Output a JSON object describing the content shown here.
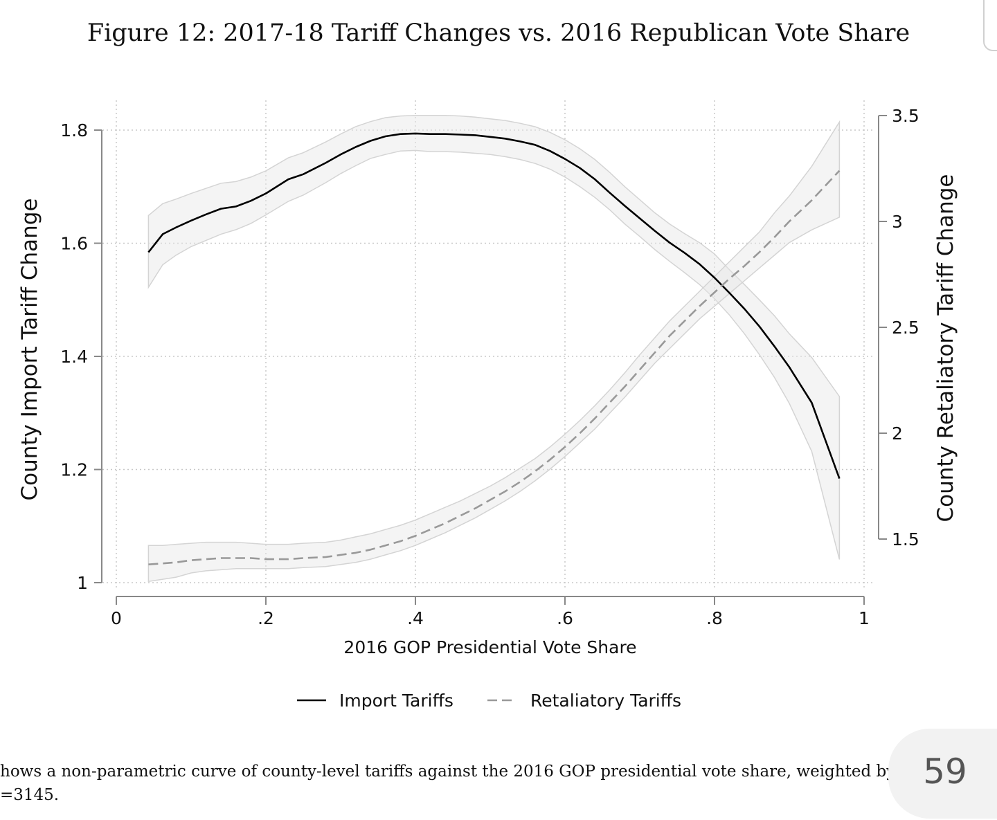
{
  "page": {
    "title": "Figure 12: 2017-18 Tariff Changes vs. 2016 Republican Vote Share",
    "caption_line1": "hows a non-parametric curve of county-level tariffs against the 2016 GOP presidential vote share, weighted by po",
    "caption_line2": "=3145.",
    "page_number": "59"
  },
  "chart_data": {
    "type": "line",
    "title": "",
    "xlabel": "2016 GOP Presidential Vote Share",
    "ylabel": "County Import Tariff Change",
    "ylabel_right": "County Retaliatory Tariff Change",
    "xlim": [
      0,
      1
    ],
    "ylim": [
      1,
      1.8
    ],
    "ylim_right": [
      1.5,
      3.5
    ],
    "x_ticks": [
      0,
      0.2,
      0.4,
      0.6,
      0.8,
      1
    ],
    "x_tick_labels": [
      "0",
      ".2",
      ".4",
      ".6",
      ".8",
      "1"
    ],
    "y_ticks": [
      1,
      1.2,
      1.4,
      1.6,
      1.8
    ],
    "y_tick_labels": [
      "1",
      "1.2",
      "1.4",
      "1.6",
      "1.8"
    ],
    "y_right_ticks": [
      1.5,
      2,
      2.5,
      3,
      3.5
    ],
    "y_right_tick_labels": [
      "1.5",
      "2",
      "2.5",
      "3",
      "3.5"
    ],
    "grid": true,
    "legend_position": "bottom",
    "x": [
      0.043,
      0.062,
      0.08,
      0.1,
      0.12,
      0.14,
      0.16,
      0.18,
      0.2,
      0.23,
      0.25,
      0.28,
      0.3,
      0.32,
      0.34,
      0.36,
      0.38,
      0.4,
      0.42,
      0.44,
      0.46,
      0.48,
      0.5,
      0.52,
      0.54,
      0.56,
      0.58,
      0.6,
      0.62,
      0.64,
      0.66,
      0.68,
      0.7,
      0.72,
      0.74,
      0.76,
      0.78,
      0.8,
      0.82,
      0.84,
      0.86,
      0.88,
      0.9,
      0.93,
      0.967
    ],
    "series": [
      {
        "name": "Import Tariffs",
        "axis": "left",
        "color": "#000000",
        "dash": "solid",
        "values": [
          1.584,
          1.616,
          1.628,
          1.64,
          1.651,
          1.661,
          1.665,
          1.675,
          1.688,
          1.713,
          1.722,
          1.742,
          1.757,
          1.77,
          1.781,
          1.789,
          1.793,
          1.794,
          1.793,
          1.793,
          1.792,
          1.791,
          1.788,
          1.785,
          1.78,
          1.774,
          1.763,
          1.749,
          1.733,
          1.713,
          1.689,
          1.666,
          1.644,
          1.622,
          1.601,
          1.583,
          1.563,
          1.539,
          1.512,
          1.484,
          1.453,
          1.418,
          1.381,
          1.318,
          1.184
        ],
        "ci_lower": [
          1.522,
          1.562,
          1.579,
          1.594,
          1.605,
          1.616,
          1.624,
          1.635,
          1.65,
          1.674,
          1.685,
          1.707,
          1.723,
          1.737,
          1.75,
          1.757,
          1.763,
          1.764,
          1.762,
          1.762,
          1.761,
          1.759,
          1.757,
          1.753,
          1.748,
          1.741,
          1.731,
          1.717,
          1.7,
          1.681,
          1.659,
          1.634,
          1.612,
          1.589,
          1.568,
          1.548,
          1.527,
          1.502,
          1.473,
          1.44,
          1.403,
          1.363,
          1.317,
          1.232,
          1.041
        ],
        "ci_upper": [
          1.649,
          1.67,
          1.678,
          1.688,
          1.697,
          1.706,
          1.709,
          1.717,
          1.728,
          1.751,
          1.76,
          1.779,
          1.793,
          1.806,
          1.815,
          1.822,
          1.825,
          1.826,
          1.826,
          1.826,
          1.825,
          1.823,
          1.82,
          1.817,
          1.812,
          1.806,
          1.796,
          1.783,
          1.767,
          1.748,
          1.725,
          1.7,
          1.677,
          1.654,
          1.634,
          1.617,
          1.601,
          1.581,
          1.553,
          1.527,
          1.5,
          1.472,
          1.44,
          1.398,
          1.329
        ]
      },
      {
        "name": "Retaliatory Tariffs",
        "axis": "right",
        "color": "#999999",
        "dash": "dashed",
        "values": [
          1.38,
          1.385,
          1.39,
          1.4,
          1.405,
          1.41,
          1.41,
          1.41,
          1.405,
          1.405,
          1.41,
          1.415,
          1.425,
          1.435,
          1.45,
          1.47,
          1.49,
          1.515,
          1.545,
          1.575,
          1.61,
          1.645,
          1.685,
          1.725,
          1.77,
          1.82,
          1.875,
          1.935,
          2.0,
          2.07,
          2.145,
          2.22,
          2.3,
          2.38,
          2.46,
          2.53,
          2.6,
          2.665,
          2.73,
          2.79,
          2.855,
          2.925,
          3.0,
          3.1,
          3.24
        ],
        "ci_lower": [
          1.3,
          1.31,
          1.32,
          1.34,
          1.35,
          1.355,
          1.36,
          1.36,
          1.36,
          1.36,
          1.365,
          1.37,
          1.38,
          1.39,
          1.405,
          1.425,
          1.445,
          1.47,
          1.5,
          1.53,
          1.565,
          1.6,
          1.64,
          1.68,
          1.725,
          1.775,
          1.83,
          1.89,
          1.955,
          2.02,
          2.095,
          2.17,
          2.25,
          2.33,
          2.4,
          2.47,
          2.54,
          2.6,
          2.66,
          2.72,
          2.78,
          2.84,
          2.9,
          2.96,
          3.02
        ],
        "ci_upper": [
          1.47,
          1.47,
          1.475,
          1.48,
          1.485,
          1.485,
          1.485,
          1.48,
          1.475,
          1.475,
          1.48,
          1.485,
          1.495,
          1.51,
          1.525,
          1.545,
          1.565,
          1.59,
          1.62,
          1.65,
          1.68,
          1.715,
          1.75,
          1.79,
          1.835,
          1.88,
          1.935,
          1.995,
          2.06,
          2.13,
          2.205,
          2.285,
          2.37,
          2.45,
          2.53,
          2.6,
          2.67,
          2.74,
          2.81,
          2.88,
          2.95,
          3.04,
          3.12,
          3.26,
          3.47
        ]
      }
    ]
  }
}
